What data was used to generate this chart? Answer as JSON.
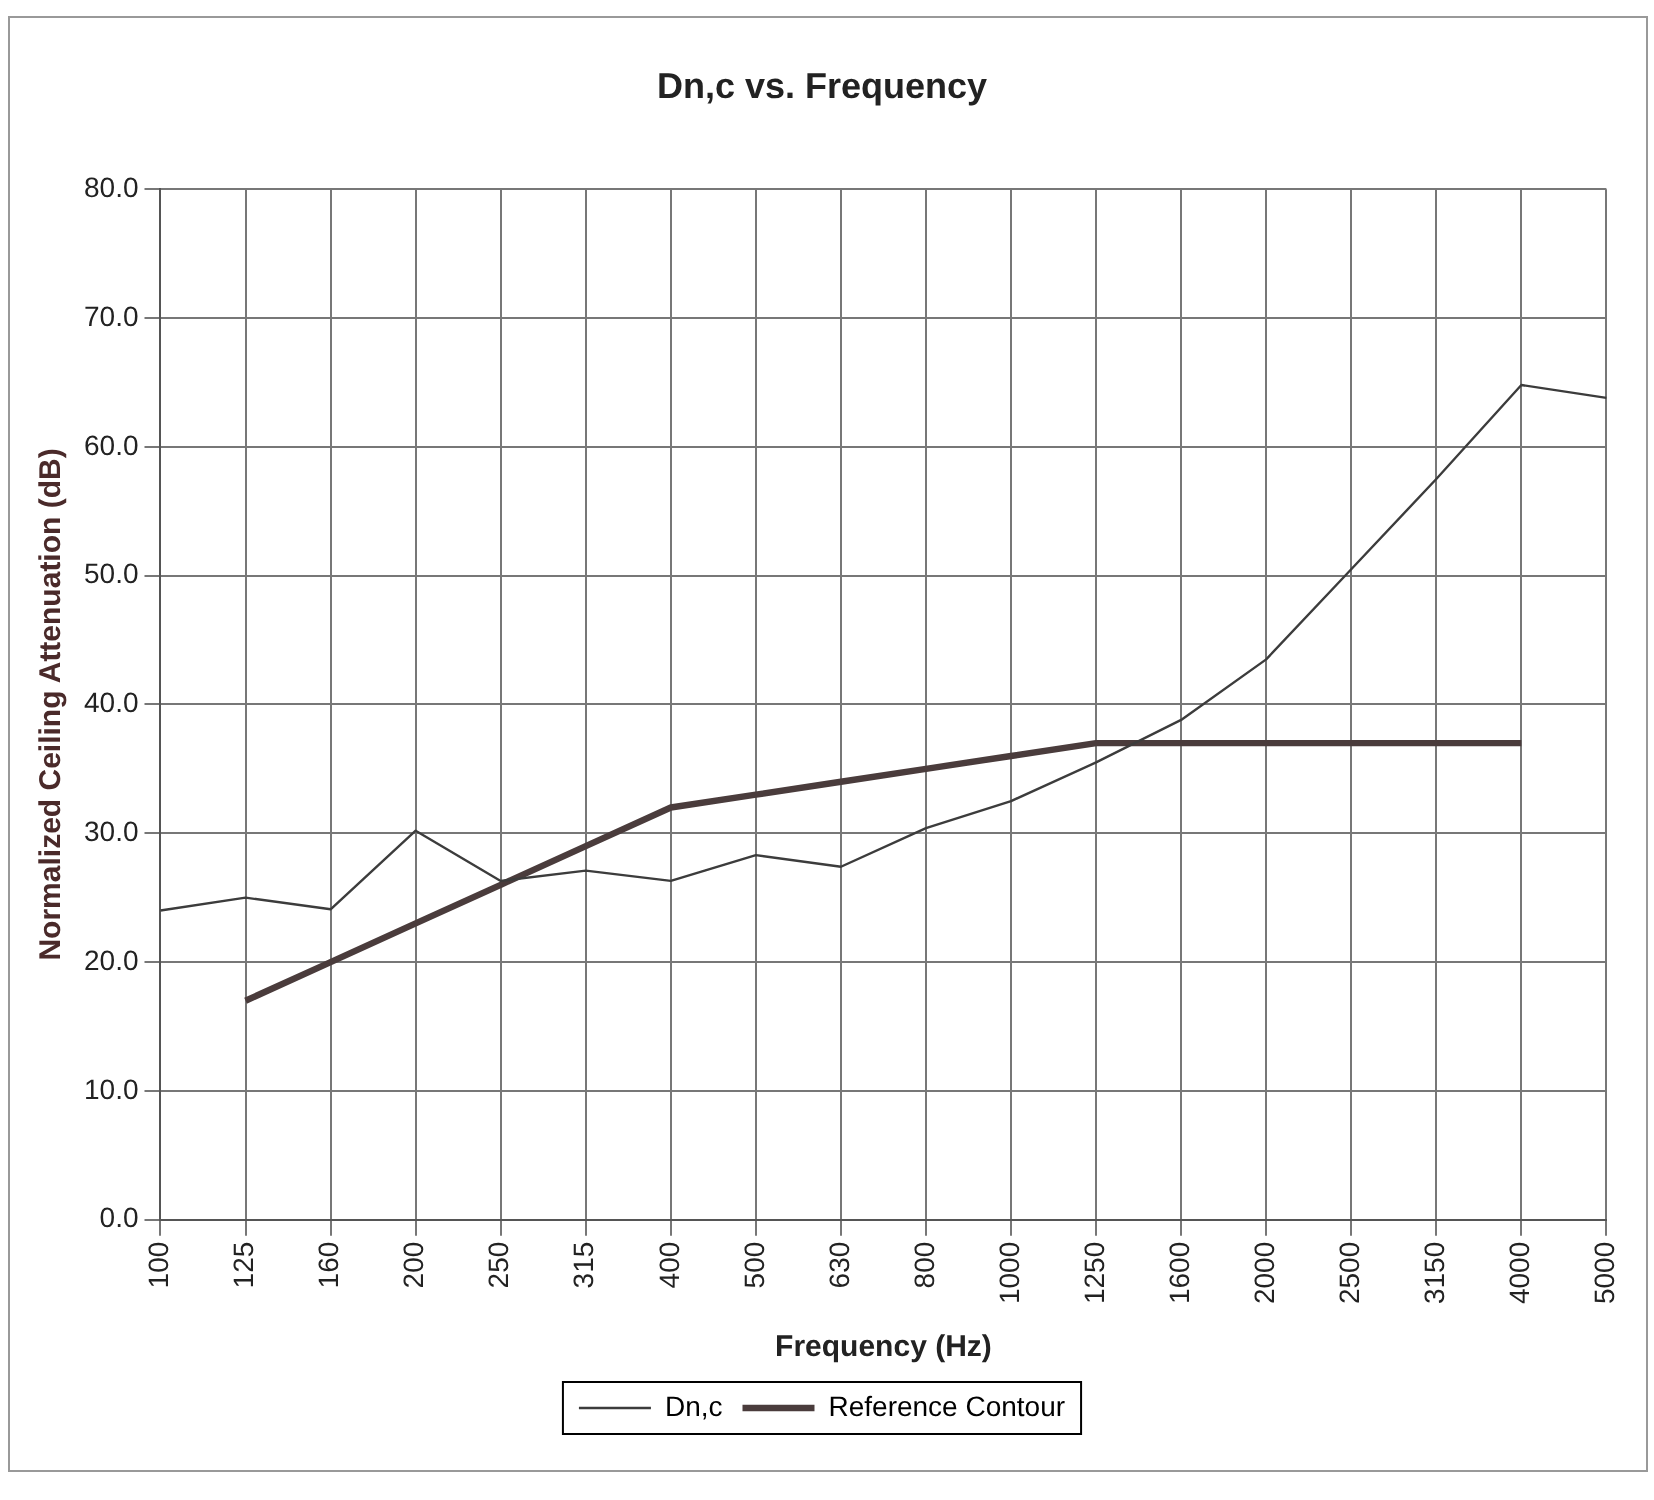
{
  "chart_data": {
    "type": "line",
    "title": "Dn,c vs. Frequency",
    "xlabel": "Frequency (Hz)",
    "ylabel": "Normalized Ceiling Attenuation (dB)",
    "categories": [
      "100",
      "125",
      "160",
      "200",
      "250",
      "315",
      "400",
      "500",
      "630",
      "800",
      "1000",
      "1250",
      "1600",
      "2000",
      "2500",
      "3150",
      "4000",
      "5000"
    ],
    "series": [
      {
        "name": "Dn,c",
        "color": "#3c3c3c",
        "values": [
          24.0,
          25.0,
          24.1,
          30.2,
          26.3,
          27.1,
          26.3,
          28.3,
          27.4,
          30.4,
          32.5,
          35.5,
          38.8,
          43.5,
          50.5,
          57.5,
          64.8,
          63.8
        ]
      },
      {
        "name": "Reference Contour",
        "color": "#4a3c3c",
        "values": [
          null,
          17,
          20,
          23,
          26,
          29,
          32,
          33,
          34,
          35,
          36,
          37,
          37,
          37,
          37,
          37,
          37,
          null
        ]
      }
    ],
    "ylim": [
      0,
      80
    ],
    "yticks": [
      {
        "value": 0,
        "label": "0.0"
      },
      {
        "value": 10,
        "label": "10.0"
      },
      {
        "value": 20,
        "label": "20.0"
      },
      {
        "value": 30,
        "label": "30.0"
      },
      {
        "value": 40,
        "label": "40.0"
      },
      {
        "value": 50,
        "label": "50.0"
      },
      {
        "value": 60,
        "label": "60.0"
      },
      {
        "value": 70,
        "label": "70.0"
      },
      {
        "value": 80,
        "label": "80.0"
      }
    ],
    "grid": true,
    "legend": "bottom",
    "marker": "none",
    "line_style": "solid"
  }
}
